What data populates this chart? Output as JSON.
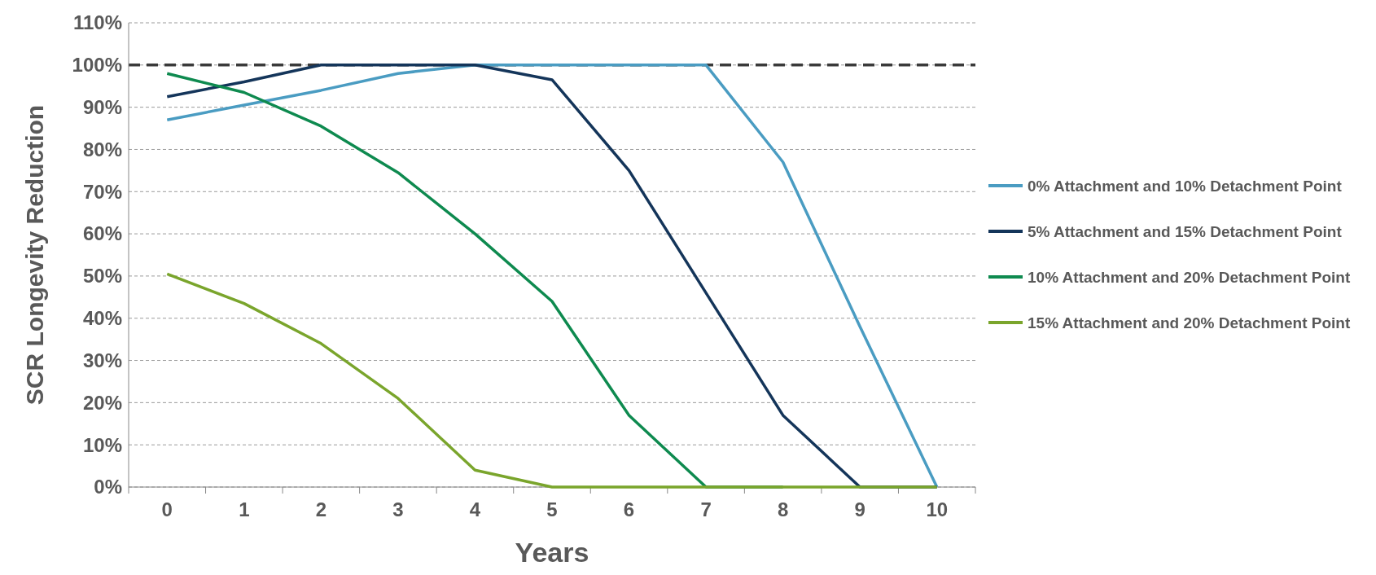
{
  "chart_data": {
    "type": "line",
    "xlabel": "Years",
    "ylabel": "SCR Longevity Reduction",
    "categories": [
      "0",
      "1",
      "2",
      "3",
      "4",
      "5",
      "6",
      "7",
      "8",
      "9",
      "10"
    ],
    "series": [
      {
        "name": "0% Attachment and 10% Detachment Point",
        "color": "#4a9cc2",
        "values": [
          87,
          90.5,
          94,
          98,
          100,
          100,
          100,
          100,
          77,
          38,
          0
        ]
      },
      {
        "name": "5% Attachment and 15% Detachment Point",
        "color": "#14355a",
        "values": [
          92.5,
          96,
          100,
          100,
          100,
          96.5,
          75,
          46,
          17,
          0,
          0
        ]
      },
      {
        "name": "10% Attachment and 20% Detachment Point",
        "color": "#0e8a4f",
        "values": [
          98,
          93.5,
          85.5,
          74.5,
          60,
          44,
          17,
          0,
          0,
          null,
          null
        ]
      },
      {
        "name": "15% Attachment and 20% Detachment Point",
        "color": "#7aa52c",
        "values": [
          50.5,
          43.5,
          34,
          21,
          4,
          0,
          0,
          0,
          0,
          0,
          0
        ]
      }
    ],
    "ylim": [
      0,
      110
    ],
    "yticks": [
      {
        "value": 0,
        "label": "0%"
      },
      {
        "value": 10,
        "label": "10%"
      },
      {
        "value": 20,
        "label": "20%"
      },
      {
        "value": 30,
        "label": "30%"
      },
      {
        "value": 40,
        "label": "40%"
      },
      {
        "value": 50,
        "label": "50%"
      },
      {
        "value": 60,
        "label": "60%"
      },
      {
        "value": 70,
        "label": "70%"
      },
      {
        "value": 80,
        "label": "80%"
      },
      {
        "value": 90,
        "label": "90%"
      },
      {
        "value": 100,
        "label": "100%"
      },
      {
        "value": 110,
        "label": "110%"
      }
    ],
    "grid": "y",
    "legend": "right",
    "marker": "none",
    "line_style": "solid",
    "ref_lines": [
      {
        "axis": "y",
        "value": 100,
        "color": "#3a3a3a",
        "line_style": "dashed"
      }
    ]
  }
}
